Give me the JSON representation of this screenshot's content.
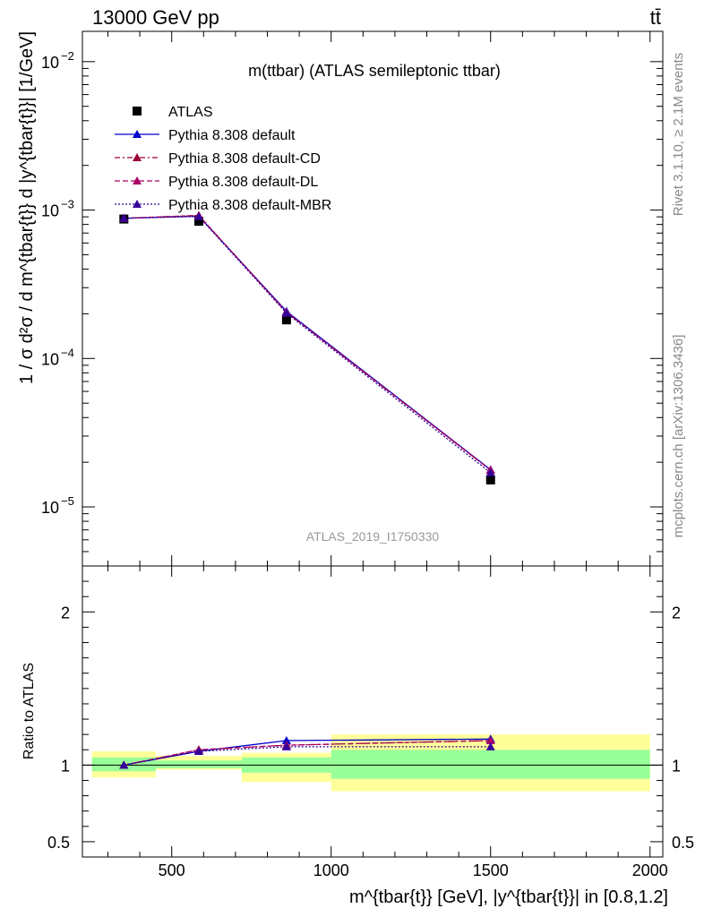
{
  "header": {
    "left": "13000 GeV pp",
    "right": "tt̄"
  },
  "side_labels": {
    "rivet": "Rivet 3.1.10, ≥ 2.1M events",
    "mcplots": "mcplots.cern.ch [arXiv:1306.3436]"
  },
  "chart_data": [
    {
      "type": "line",
      "panel": "main",
      "title": "m(ttbar) (ATLAS semileptonic ttbar)",
      "watermark": "ATLAS_2019_I1750330",
      "ylabel": "1 / σ d²σ / d m^{tbar{t}} d |y^{tbar{t}}| [1/GeV]",
      "yscale": "log",
      "ylim": [
        4e-06,
        0.016
      ],
      "xlim": [
        220,
        2040
      ],
      "yticks": [
        {
          "value": 0.01,
          "base": "10",
          "exp": "−2"
        },
        {
          "value": 0.001,
          "base": "10",
          "exp": "−3"
        },
        {
          "value": 0.0001,
          "base": "10",
          "exp": "−4"
        },
        {
          "value": 1e-05,
          "base": "10",
          "exp": "−5"
        }
      ],
      "legend_position": "top-left",
      "series": [
        {
          "name": "ATLAS",
          "color": "#000000",
          "marker": "square",
          "dash": "none",
          "x": [
            350,
            585,
            860,
            1500
          ],
          "y": [
            0.00087,
            0.00084,
            0.000182,
            1.52e-05
          ],
          "xerr": [
            [
              250,
              450
            ],
            [
              450,
              720
            ],
            [
              720,
              1000
            ],
            [
              1000,
              2000
            ]
          ]
        },
        {
          "name": "Pythia 8.308 default",
          "color": "#0000cc",
          "marker": "triangle",
          "dash": "solid",
          "x": [
            350,
            585,
            860,
            1500
          ],
          "y": [
            0.00088,
            0.00091,
            0.000208,
            1.78e-05
          ]
        },
        {
          "name": "Pythia 8.308 default-CD",
          "color": "#990033",
          "marker": "triangle",
          "dash": "dashdot",
          "x": [
            350,
            585,
            860,
            1500
          ],
          "y": [
            0.00088,
            0.00092,
            0.000205,
            1.77e-05
          ]
        },
        {
          "name": "Pythia 8.308 default-DL",
          "color": "#aa0066",
          "marker": "triangle",
          "dash": "dashed",
          "x": [
            350,
            585,
            860,
            1500
          ],
          "y": [
            0.00088,
            0.00092,
            0.000205,
            1.77e-05
          ]
        },
        {
          "name": "Pythia 8.308 default-MBR",
          "color": "#330099",
          "marker": "triangle",
          "dash": "dotted",
          "x": [
            350,
            585,
            860,
            1500
          ],
          "y": [
            0.00088,
            0.000905,
            0.000202,
            1.7e-05
          ]
        }
      ]
    },
    {
      "type": "line",
      "panel": "ratio",
      "ylabel": "Ratio to ATLAS",
      "xlabel": "m^{tbar{t}} [GeV], |y^{tbar{t}}| in [0.8,1.2]",
      "ylim": [
        0.4,
        2.3
      ],
      "xlim": [
        220,
        2040
      ],
      "yticks": [
        0.5,
        1,
        2
      ],
      "ytick_labels": [
        "0.5",
        "1",
        "2"
      ],
      "xticks": [
        500,
        1000,
        1500,
        2000
      ],
      "xtick_labels": [
        "500",
        "1000",
        "1500",
        "2000"
      ],
      "bands": [
        {
          "x": [
            250,
            450
          ],
          "yellow": [
            0.92,
            1.09
          ],
          "green": [
            0.96,
            1.05
          ]
        },
        {
          "x": [
            450,
            720
          ],
          "yellow": [
            0.97,
            1.06
          ],
          "green": [
            0.98,
            1.03
          ]
        },
        {
          "x": [
            720,
            1000
          ],
          "yellow": [
            0.89,
            1.08
          ],
          "green": [
            0.95,
            1.05
          ]
        },
        {
          "x": [
            1000,
            2000
          ],
          "yellow": [
            0.83,
            1.2
          ],
          "green": [
            0.91,
            1.1
          ]
        }
      ],
      "series": [
        {
          "name": "Pythia 8.308 default",
          "color": "#0000cc",
          "dash": "solid",
          "x": [
            350,
            585,
            860,
            1500
          ],
          "y": [
            1.0,
            1.09,
            1.16,
            1.17
          ]
        },
        {
          "name": "Pythia 8.308 default-CD",
          "color": "#990033",
          "dash": "dashdot",
          "x": [
            350,
            585,
            860,
            1500
          ],
          "y": [
            1.0,
            1.1,
            1.13,
            1.16
          ]
        },
        {
          "name": "Pythia 8.308 default-DL",
          "color": "#aa0066",
          "dash": "dashed",
          "x": [
            350,
            585,
            860,
            1500
          ],
          "y": [
            1.0,
            1.1,
            1.13,
            1.16
          ]
        },
        {
          "name": "Pythia 8.308 default-MBR",
          "color": "#330099",
          "dash": "dotted",
          "x": [
            350,
            585,
            860,
            1500
          ],
          "y": [
            1.0,
            1.09,
            1.12,
            1.12
          ]
        }
      ]
    }
  ]
}
